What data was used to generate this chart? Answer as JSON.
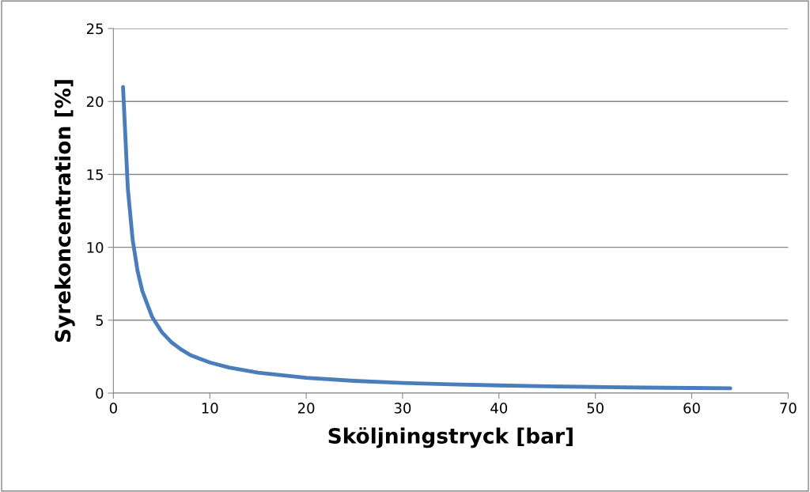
{
  "chart_data": {
    "type": "line",
    "xlabel": "Sköljningstryck [bar]",
    "ylabel": "Syrekoncentration [%]",
    "series": [
      {
        "color": "#4a7ebb",
        "x": [
          1,
          1.5,
          2,
          2.5,
          3,
          4,
          5,
          6,
          7,
          8,
          10,
          12,
          15,
          20,
          25,
          30,
          35,
          40,
          45,
          50,
          55,
          60,
          64
        ],
        "values": [
          21,
          14,
          10.5,
          8.4,
          7,
          5.25,
          4.2,
          3.5,
          3,
          2.6,
          2.1,
          1.75,
          1.4,
          1.05,
          0.84,
          0.7,
          0.6,
          0.53,
          0.47,
          0.42,
          0.38,
          0.35,
          0.33
        ]
      }
    ],
    "xlim": [
      0,
      70
    ],
    "xticks": [
      0,
      10,
      20,
      30,
      40,
      50,
      60,
      70
    ],
    "ylim": [
      0,
      25
    ],
    "yticks": [
      0,
      5,
      10,
      15,
      20,
      25
    ],
    "grid": "y",
    "legend": false,
    "marker": "none",
    "line_style": "solid"
  }
}
